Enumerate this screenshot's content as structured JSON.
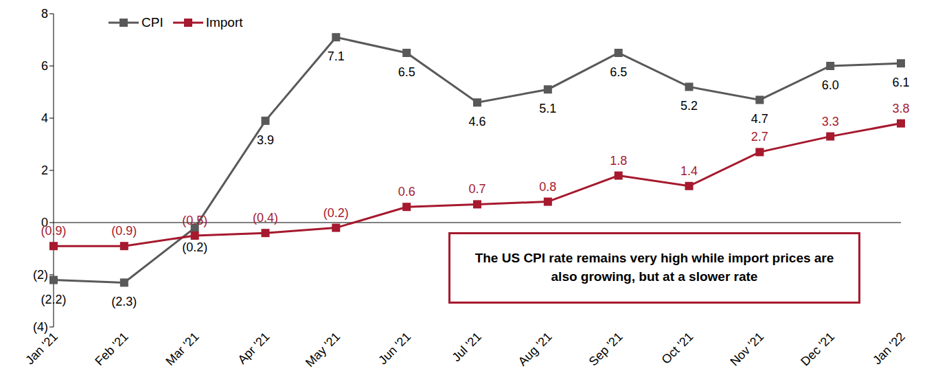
{
  "chart_data": {
    "type": "line",
    "categories": [
      "Jan '21",
      "Feb '21",
      "Mar '21",
      "Apr '21",
      "May '21",
      "Jun '21",
      "Jul '21",
      "Aug '21",
      "Sep '21",
      "Oct '21",
      "Nov '21",
      "Dec '21",
      "Jan '22"
    ],
    "series": [
      {
        "name": "CPI",
        "color": "#595959",
        "marker": "square",
        "line_style": "solid",
        "values": [
          -2.2,
          -2.3,
          -0.2,
          3.9,
          7.1,
          6.5,
          4.6,
          5.1,
          6.5,
          5.2,
          4.7,
          6.0,
          6.1
        ],
        "value_labels": [
          "(2.2)",
          "(2.3)",
          "(0.2)",
          "3.9",
          "7.1",
          "6.5",
          "4.6",
          "5.1",
          "6.5",
          "5.2",
          "4.7",
          "6.0",
          "6.1"
        ]
      },
      {
        "name": "Import",
        "color": "#A6192E",
        "marker": "square",
        "line_style": "solid",
        "values": [
          -0.9,
          -0.9,
          -0.5,
          -0.4,
          -0.2,
          0.6,
          0.7,
          0.8,
          1.8,
          1.4,
          2.7,
          3.3,
          3.8
        ],
        "value_labels": [
          "(0.9)",
          "(0.9)",
          "(0.5)",
          "(0.4)",
          "(0.2)",
          "0.6",
          "0.7",
          "0.8",
          "1.8",
          "1.4",
          "2.7",
          "3.3",
          "3.8"
        ]
      }
    ],
    "ylim": [
      -4,
      8
    ],
    "yticks": [
      {
        "value": -4,
        "label": "(4)"
      },
      {
        "value": -2,
        "label": "(2)"
      },
      0,
      2,
      4,
      6,
      8
    ],
    "grid": false,
    "legend": "upper left",
    "data_labels": true,
    "annotation": "The US CPI rate remains very high while import prices are also growing, but at a slower rate"
  }
}
